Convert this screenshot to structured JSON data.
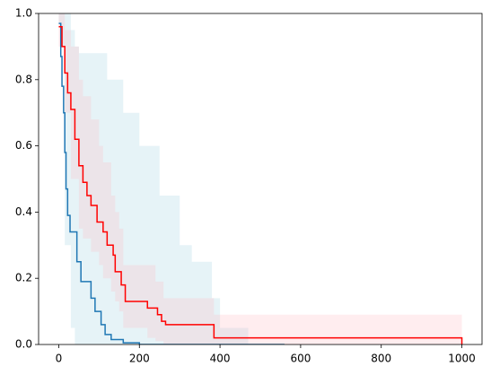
{
  "chart_data": {
    "type": "line",
    "drawstyle": "steps-post",
    "xlim": [
      -50,
      1050
    ],
    "ylim": [
      0,
      1
    ],
    "xticks": [
      0,
      200,
      400,
      600,
      800,
      1000
    ],
    "yticks": [
      {
        "value": 0,
        "label": "0.0"
      },
      0.2,
      0.4,
      0.6,
      0.8,
      {
        "value": 1,
        "label": "1.0"
      }
    ],
    "bands": [
      {
        "color": "#add8e6",
        "opacity": 0.3,
        "x": [
          0,
          5,
          15,
          30,
          40,
          50,
          120,
          160,
          200,
          250,
          300,
          330,
          380,
          400,
          470
        ],
        "upper": [
          1,
          1,
          1,
          0.95,
          0.9,
          0.88,
          0.8,
          0.7,
          0.6,
          0.45,
          0.3,
          0.25,
          0.14,
          0.05,
          0.03
        ],
        "lower": [
          0.97,
          0.9,
          0.3,
          0.05,
          0,
          0,
          0,
          0,
          0,
          0,
          0,
          0,
          0,
          0,
          0
        ]
      },
      {
        "color": "#ffb6c1",
        "opacity": 0.25,
        "x": [
          0,
          15,
          30,
          50,
          60,
          80,
          100,
          110,
          130,
          140,
          150,
          160,
          220,
          240,
          260,
          385,
          1000
        ],
        "upper": [
          1,
          0.95,
          0.9,
          0.8,
          0.75,
          0.68,
          0.6,
          0.55,
          0.45,
          0.4,
          0.35,
          0.24,
          0.24,
          0.19,
          0.14,
          0.09,
          0.09
        ],
        "lower": [
          0.9,
          0.7,
          0.5,
          0.35,
          0.32,
          0.28,
          0.24,
          0.2,
          0.16,
          0.13,
          0.1,
          0.05,
          0.02,
          0.01,
          0,
          0,
          0
        ]
      }
    ],
    "series": [
      {
        "color": "#1f77b4",
        "x": [
          0,
          5,
          8,
          12,
          15,
          18,
          22,
          28,
          45,
          55,
          80,
          90,
          105,
          115,
          130,
          160,
          200,
          560
        ],
        "values": [
          0.97,
          0.87,
          0.78,
          0.7,
          0.58,
          0.47,
          0.39,
          0.34,
          0.25,
          0.19,
          0.14,
          0.1,
          0.06,
          0.03,
          0.015,
          0.005,
          0,
          0
        ]
      },
      {
        "color": "#ff0000",
        "x": [
          0,
          8,
          15,
          22,
          30,
          40,
          50,
          60,
          70,
          80,
          95,
          110,
          120,
          135,
          140,
          155,
          165,
          220,
          245,
          255,
          265,
          385,
          1000
        ],
        "values": [
          0.96,
          0.9,
          0.82,
          0.76,
          0.71,
          0.62,
          0.54,
          0.49,
          0.45,
          0.42,
          0.37,
          0.34,
          0.3,
          0.27,
          0.22,
          0.18,
          0.13,
          0.11,
          0.09,
          0.07,
          0.06,
          0.02,
          0
        ]
      }
    ]
  }
}
